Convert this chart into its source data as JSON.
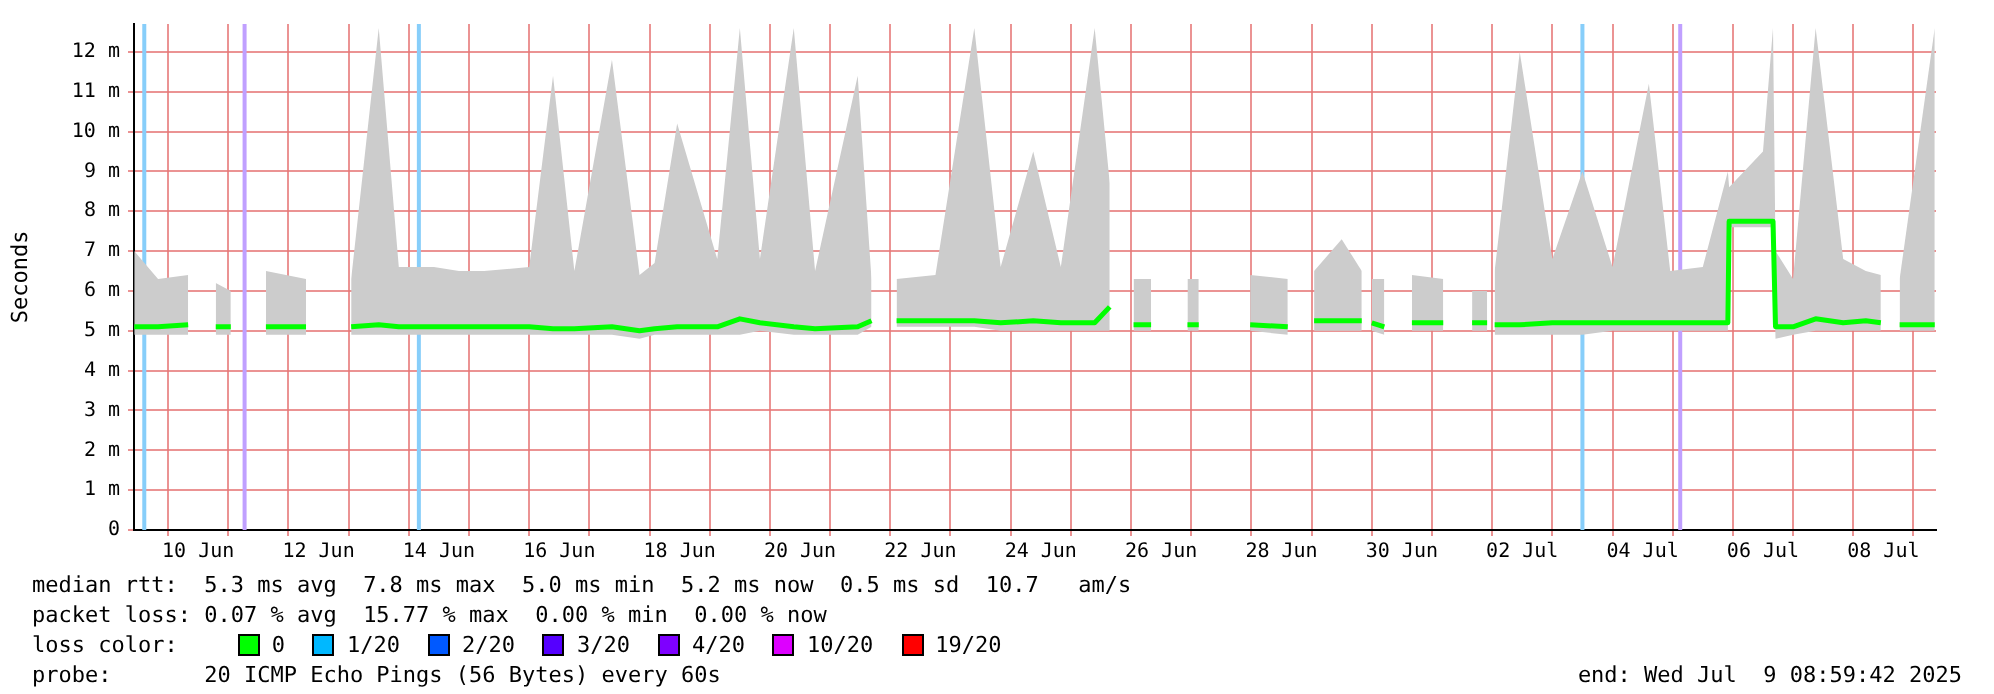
{
  "chart_data": {
    "type": "line",
    "ylabel": "Seconds",
    "xlim": [
      "2025-06-09T10:24",
      "2025-07-09T09:00"
    ],
    "ylim": [
      0,
      12.7
    ],
    "yticks": [
      0,
      {
        "value": 1,
        "label": "1 m"
      },
      {
        "value": 2,
        "label": "2 m"
      },
      {
        "value": 3,
        "label": "3 m"
      },
      {
        "value": 4,
        "label": "4 m"
      },
      {
        "value": 5,
        "label": "5 m"
      },
      {
        "value": 6,
        "label": "6 m"
      },
      {
        "value": 7,
        "label": "7 m"
      },
      {
        "value": 8,
        "label": "8 m"
      },
      {
        "value": 9,
        "label": "9 m"
      },
      {
        "value": 10,
        "label": "10 m"
      },
      {
        "value": 11,
        "label": "11 m"
      },
      {
        "value": 12,
        "label": "12 m"
      }
    ],
    "xticks": [
      {
        "value": "2025-06-10",
        "label": null
      },
      {
        "value": "2025-06-10T12:00",
        "label": "10 Jun"
      },
      {
        "value": "2025-06-11",
        "label": null
      },
      {
        "value": "2025-06-12",
        "label": null
      },
      {
        "value": "2025-06-12T12:00",
        "label": "12 Jun"
      },
      {
        "value": "2025-06-13",
        "label": null
      },
      {
        "value": "2025-06-14",
        "label": null
      },
      {
        "value": "2025-06-14T12:00",
        "label": "14 Jun"
      },
      {
        "value": "2025-06-15",
        "label": null
      },
      {
        "value": "2025-06-16",
        "label": null
      },
      {
        "value": "2025-06-16T12:00",
        "label": "16 Jun"
      },
      {
        "value": "2025-06-17",
        "label": null
      },
      {
        "value": "2025-06-18",
        "label": null
      },
      {
        "value": "2025-06-18T12:00",
        "label": "18 Jun"
      },
      {
        "value": "2025-06-19",
        "label": null
      },
      {
        "value": "2025-06-20",
        "label": null
      },
      {
        "value": "2025-06-20T12:00",
        "label": "20 Jun"
      },
      {
        "value": "2025-06-21",
        "label": null
      },
      {
        "value": "2025-06-22",
        "label": null
      },
      {
        "value": "2025-06-22T12:00",
        "label": "22 Jun"
      },
      {
        "value": "2025-06-23",
        "label": null
      },
      {
        "value": "2025-06-24",
        "label": null
      },
      {
        "value": "2025-06-24T12:00",
        "label": "24 Jun"
      },
      {
        "value": "2025-06-25",
        "label": null
      },
      {
        "value": "2025-06-26",
        "label": null
      },
      {
        "value": "2025-06-26T12:00",
        "label": "26 Jun"
      },
      {
        "value": "2025-06-27",
        "label": null
      },
      {
        "value": "2025-06-28",
        "label": null
      },
      {
        "value": "2025-06-28T12:00",
        "label": "28 Jun"
      },
      {
        "value": "2025-06-29",
        "label": null
      },
      {
        "value": "2025-06-30",
        "label": null
      },
      {
        "value": "2025-06-30T12:00",
        "label": "30 Jun"
      },
      {
        "value": "2025-07-01",
        "label": null
      },
      {
        "value": "2025-07-02",
        "label": null
      },
      {
        "value": "2025-07-02T12:00",
        "label": "02 Jul"
      },
      {
        "value": "2025-07-03",
        "label": null
      },
      {
        "value": "2025-07-04",
        "label": null
      },
      {
        "value": "2025-07-04T12:00",
        "label": "04 Jul"
      },
      {
        "value": "2025-07-05",
        "label": null
      },
      {
        "value": "2025-07-06",
        "label": null
      },
      {
        "value": "2025-07-06T12:00",
        "label": "06 Jul"
      },
      {
        "value": "2025-07-07",
        "label": null
      },
      {
        "value": "2025-07-08",
        "label": null
      },
      {
        "value": "2025-07-08T12:00",
        "label": "08 Jul"
      },
      {
        "value": "2025-07-09",
        "label": null
      }
    ],
    "grid": true,
    "legend": false,
    "marker": "none",
    "line_style": "solid",
    "x": [
      "2025-06-09T10:30",
      "2025-06-09T20:00",
      "2025-06-10T08:00",
      "2025-06-10T14:00",
      "2025-06-10T19:00",
      "2025-06-11T01:00",
      "2025-06-11T04:00",
      "2025-06-11T15:00",
      "2025-06-11T23:00",
      "2025-06-12T07:00",
      "2025-06-12T15:00",
      "2025-06-13T01:00",
      "2025-06-13T12:00",
      "2025-06-13T20:00",
      "2025-06-14T10:00",
      "2025-06-14T20:00",
      "2025-06-15T06:00",
      "2025-06-16T00:00",
      "2025-06-16T09:30",
      "2025-06-16T18:00",
      "2025-06-17T09:00",
      "2025-06-17T20:00",
      "2025-06-18T02:00",
      "2025-06-18T11:00",
      "2025-06-19T03:00",
      "2025-06-19T12:00",
      "2025-06-19T20:00",
      "2025-06-20T09:30",
      "2025-06-20T18:00",
      "2025-06-21T11:00",
      "2025-06-21T16:30",
      "2025-06-21T21:00",
      "2025-06-22T02:30",
      "2025-06-22T18:00",
      "2025-06-23T09:30",
      "2025-06-23T20:00",
      "2025-06-24T09:00",
      "2025-06-24T20:00",
      "2025-06-25T09:30",
      "2025-06-25T15:30",
      "2025-06-25T20:00",
      "2025-06-26T01:00",
      "2025-06-26T08:00",
      "2025-06-26T15:00",
      "2025-06-26T22:30",
      "2025-06-27T03:00",
      "2025-06-27T12:00",
      "2025-06-27T23:30",
      "2025-06-28T14:30",
      "2025-06-28T20:00",
      "2025-06-29T01:00",
      "2025-06-29T12:00",
      "2025-06-29T20:00",
      "2025-06-29T22:00",
      "2025-06-30T00:00",
      "2025-06-30T05:00",
      "2025-06-30T10:00",
      "2025-06-30T16:00",
      "2025-07-01T04:30",
      "2025-07-01T12:00",
      "2025-07-01T16:00",
      "2025-07-01T22:00",
      "2025-07-01T23:30",
      "2025-07-02T01:00",
      "2025-07-02T11:00",
      "2025-07-03T00:00",
      "2025-07-03T12:00",
      "2025-07-04T00:00",
      "2025-07-04T14:30",
      "2025-07-04T23:00",
      "2025-07-05T12:00",
      "2025-07-05T22:00",
      "2025-07-05T22:30",
      "2025-07-06T12:00",
      "2025-07-06T16:00",
      "2025-07-06T17:00",
      "2025-07-07T00:00",
      "2025-07-07T09:00",
      "2025-07-07T20:00",
      "2025-07-08T05:00",
      "2025-07-08T11:00",
      "2025-07-08T14:00",
      "2025-07-08T18:30",
      "2025-07-09T08:30"
    ],
    "series": [
      {
        "color": "#00ff00",
        "values": [
          5.1,
          5.1,
          5.15,
          null,
          5.1,
          5.1,
          null,
          5.1,
          5.1,
          5.1,
          null,
          5.1,
          5.15,
          5.1,
          5.1,
          5.1,
          5.1,
          5.1,
          5.05,
          5.05,
          5.1,
          5.0,
          5.05,
          5.1,
          5.1,
          5.3,
          5.2,
          5.1,
          5.05,
          5.1,
          5.25,
          null,
          5.25,
          5.25,
          5.25,
          5.2,
          5.25,
          5.2,
          5.2,
          5.6,
          null,
          5.15,
          5.15,
          null,
          5.15,
          5.15,
          null,
          5.15,
          5.1,
          null,
          5.25,
          5.25,
          5.25,
          null,
          5.2,
          5.1,
          null,
          5.2,
          5.2,
          null,
          5.2,
          5.2,
          null,
          5.15,
          5.15,
          5.2,
          5.2,
          5.2,
          5.2,
          5.2,
          5.2,
          5.2,
          7.75,
          7.75,
          7.75,
          5.1,
          5.1,
          5.3,
          5.2,
          5.25,
          5.2,
          null,
          5.15,
          5.15
        ],
        "lower": [
          4.9,
          4.9,
          4.9,
          null,
          4.9,
          4.9,
          null,
          4.9,
          4.9,
          4.9,
          null,
          4.9,
          4.9,
          4.9,
          4.9,
          4.9,
          4.9,
          4.9,
          4.9,
          4.9,
          4.9,
          4.8,
          4.9,
          4.9,
          4.9,
          4.9,
          5.0,
          4.9,
          4.9,
          4.9,
          5.1,
          null,
          5.1,
          5.1,
          5.1,
          5.0,
          5.0,
          5.0,
          5.0,
          5.0,
          null,
          5.0,
          5.0,
          null,
          5.0,
          5.0,
          null,
          5.0,
          4.9,
          null,
          5.0,
          5.0,
          5.0,
          null,
          5.0,
          4.9,
          null,
          5.0,
          5.0,
          null,
          5.0,
          5.0,
          null,
          4.9,
          4.9,
          4.9,
          4.9,
          5.0,
          5.0,
          5.0,
          5.0,
          5.0,
          7.6,
          7.6,
          7.6,
          4.8,
          4.9,
          5.0,
          5.0,
          5.0,
          5.0,
          null,
          5.0,
          5.0
        ],
        "upper": [
          7.0,
          6.3,
          6.4,
          null,
          6.2,
          6.0,
          null,
          6.5,
          6.4,
          6.3,
          null,
          6.3,
          12.6,
          6.6,
          6.6,
          6.5,
          6.5,
          6.6,
          11.4,
          6.5,
          11.8,
          6.4,
          6.7,
          10.2,
          6.8,
          12.6,
          6.8,
          12.6,
          6.5,
          11.4,
          6.3,
          null,
          6.3,
          6.4,
          12.6,
          6.6,
          9.5,
          6.6,
          12.6,
          8.7,
          null,
          6.3,
          6.3,
          null,
          6.3,
          6.3,
          null,
          6.4,
          6.3,
          null,
          6.5,
          7.3,
          6.5,
          null,
          6.3,
          6.3,
          null,
          6.4,
          6.3,
          null,
          6.0,
          6.0,
          null,
          6.5,
          12.0,
          6.8,
          9.0,
          6.6,
          11.2,
          6.5,
          6.6,
          9.0,
          8.6,
          9.5,
          12.6,
          7.0,
          6.3,
          12.6,
          6.8,
          6.5,
          6.4,
          null,
          6.3,
          12.6
        ]
      }
    ],
    "ref_lines": [
      {
        "axis": "x",
        "value": "2025-06-09T14:30",
        "color": "#87cefa"
      },
      {
        "axis": "x",
        "value": "2025-06-11T06:30",
        "color": "#c0a0ff"
      },
      {
        "axis": "x",
        "value": "2025-06-14T04:00",
        "color": "#87cefa"
      },
      {
        "axis": "x",
        "value": "2025-07-03T12:00",
        "color": "#87cefa"
      },
      {
        "axis": "x",
        "value": "2025-07-05T03:00",
        "color": "#c0a0ff"
      }
    ],
    "annotations": [
      "median rtt:  5.3 ms avg  7.8 ms max  5.0 ms min  5.2 ms now  0.5 ms sd  10.7   am/s",
      "packet loss: 0.07 % avg  15.77 % max  0.00 % min  0.00 % now",
      "loss color:",
      "0",
      "1/20",
      "2/20",
      "3/20",
      "4/20",
      "10/20",
      "19/20",
      "probe:       20 ICMP Echo Pings (56 Bytes) every 60s",
      "end: Wed Jul  9 08:59:42 2025"
    ]
  }
}
